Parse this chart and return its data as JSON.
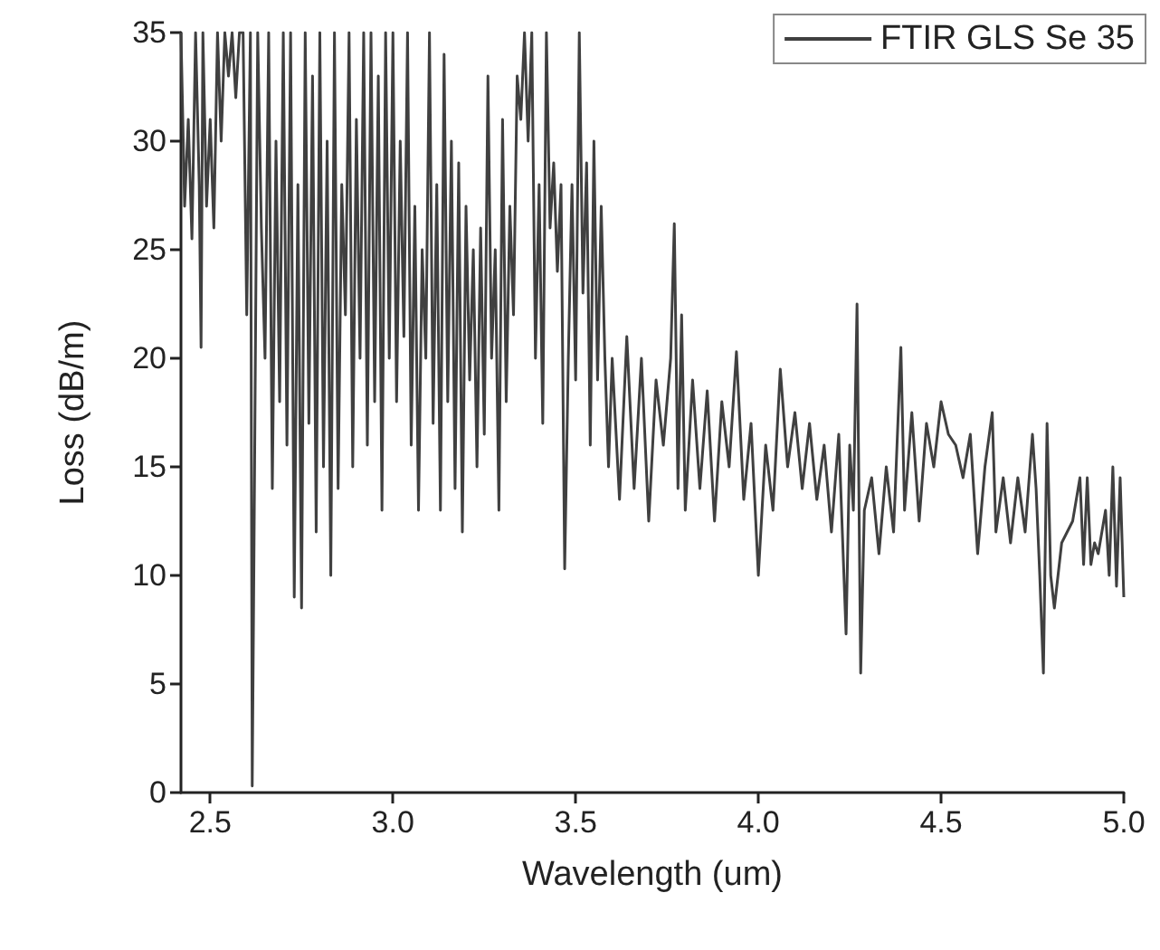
{
  "chart_data": {
    "type": "line",
    "xlabel": "Wavelength (um)",
    "ylabel": "Loss (dB/m)",
    "xlim": [
      2.42,
      5.0
    ],
    "xticks": [
      2.5,
      {
        "value": 3,
        "label": "3.0"
      },
      3.5,
      {
        "value": 4,
        "label": "4.0"
      },
      4.5,
      {
        "value": 5,
        "label": "5.0"
      }
    ],
    "ylim": [
      0,
      35
    ],
    "yticks": [
      0,
      5,
      10,
      15,
      20,
      25,
      30,
      35
    ],
    "grid": false,
    "legend": "top right",
    "line_style": "solid",
    "x": [
      2.42,
      2.43,
      2.44,
      2.45,
      2.46,
      2.47,
      2.475,
      2.48,
      2.49,
      2.5,
      2.51,
      2.52,
      2.53,
      2.54,
      2.55,
      2.56,
      2.57,
      2.58,
      2.59,
      2.6,
      2.61,
      2.615,
      2.62,
      2.63,
      2.64,
      2.65,
      2.66,
      2.67,
      2.68,
      2.69,
      2.7,
      2.71,
      2.72,
      2.73,
      2.74,
      2.75,
      2.76,
      2.77,
      2.78,
      2.79,
      2.8,
      2.81,
      2.82,
      2.83,
      2.84,
      2.85,
      2.86,
      2.87,
      2.88,
      2.89,
      2.9,
      2.91,
      2.92,
      2.93,
      2.94,
      2.95,
      2.96,
      2.97,
      2.98,
      2.99,
      3.0,
      3.01,
      3.02,
      3.03,
      3.04,
      3.05,
      3.06,
      3.07,
      3.08,
      3.09,
      3.1,
      3.11,
      3.12,
      3.13,
      3.14,
      3.15,
      3.16,
      3.17,
      3.18,
      3.19,
      3.2,
      3.21,
      3.22,
      3.23,
      3.24,
      3.25,
      3.26,
      3.27,
      3.28,
      3.29,
      3.3,
      3.31,
      3.32,
      3.33,
      3.34,
      3.35,
      3.36,
      3.37,
      3.38,
      3.39,
      3.4,
      3.41,
      3.42,
      3.43,
      3.44,
      3.45,
      3.46,
      3.47,
      3.48,
      3.49,
      3.5,
      3.51,
      3.52,
      3.53,
      3.54,
      3.55,
      3.56,
      3.57,
      3.58,
      3.59,
      3.6,
      3.62,
      3.64,
      3.66,
      3.68,
      3.7,
      3.72,
      3.74,
      3.76,
      3.77,
      3.78,
      3.79,
      3.8,
      3.82,
      3.84,
      3.86,
      3.88,
      3.9,
      3.92,
      3.94,
      3.96,
      3.98,
      4.0,
      4.02,
      4.04,
      4.06,
      4.08,
      4.1,
      4.12,
      4.14,
      4.16,
      4.18,
      4.2,
      4.22,
      4.24,
      4.25,
      4.26,
      4.27,
      4.28,
      4.29,
      4.31,
      4.33,
      4.35,
      4.37,
      4.39,
      4.4,
      4.42,
      4.44,
      4.46,
      4.48,
      4.5,
      4.52,
      4.54,
      4.56,
      4.58,
      4.6,
      4.62,
      4.64,
      4.65,
      4.67,
      4.69,
      4.71,
      4.73,
      4.75,
      4.76,
      4.77,
      4.78,
      4.79,
      4.8,
      4.81,
      4.83,
      4.86,
      4.88,
      4.89,
      4.9,
      4.91,
      4.92,
      4.93,
      4.95,
      4.96,
      4.97,
      4.98,
      4.99,
      5.0
    ],
    "series": [
      {
        "name": "FTIR GLS Se 35",
        "color": "#404040",
        "values": [
          35,
          27,
          31,
          25.5,
          35,
          28,
          20.5,
          35,
          27,
          31,
          26,
          35,
          30,
          35,
          33,
          35,
          32,
          35,
          35,
          22,
          35,
          0.3,
          11.5,
          35,
          26,
          20,
          35,
          14,
          30,
          18,
          35,
          16,
          35,
          9,
          28,
          8.5,
          35,
          17,
          33,
          12,
          35,
          15,
          30,
          10,
          35,
          14,
          28,
          22,
          35,
          15,
          31,
          20,
          35,
          16,
          35,
          18,
          33,
          13,
          35,
          20,
          35,
          18,
          30,
          21,
          35,
          16,
          27,
          13,
          25,
          20,
          35,
          17,
          28,
          13,
          34,
          18,
          30,
          14,
          29,
          12,
          27,
          19,
          25,
          15,
          26,
          16.5,
          33,
          20,
          25,
          13,
          31,
          18,
          27,
          22,
          33,
          31,
          35,
          30,
          35,
          20,
          28,
          17,
          35,
          26,
          29,
          24,
          28,
          10.3,
          20,
          28,
          19,
          35,
          23,
          29,
          16,
          30,
          19,
          27,
          20,
          15,
          20,
          13.5,
          21,
          14,
          20,
          12.5,
          19,
          16,
          20,
          26.2,
          14,
          22,
          13,
          19,
          14,
          18.5,
          12.5,
          18,
          15,
          20.3,
          13.5,
          17,
          10,
          16,
          13,
          19.5,
          15,
          17.5,
          14,
          17,
          13.5,
          16,
          12,
          16.5,
          7.3,
          16,
          13,
          22.5,
          5.5,
          13,
          14.5,
          11,
          15,
          12,
          20.5,
          13,
          17.5,
          12.5,
          17,
          15,
          18,
          16.5,
          16,
          14.5,
          16.5,
          11,
          15,
          17.5,
          12,
          14.5,
          11.5,
          14.5,
          12,
          16.5,
          14,
          10,
          5.5,
          17,
          10,
          8.5,
          11.5,
          12.5,
          14.5,
          10.5,
          14.5,
          10.5,
          11.5,
          11,
          13,
          10,
          15,
          9.5,
          14.5,
          9
        ]
      }
    ]
  }
}
